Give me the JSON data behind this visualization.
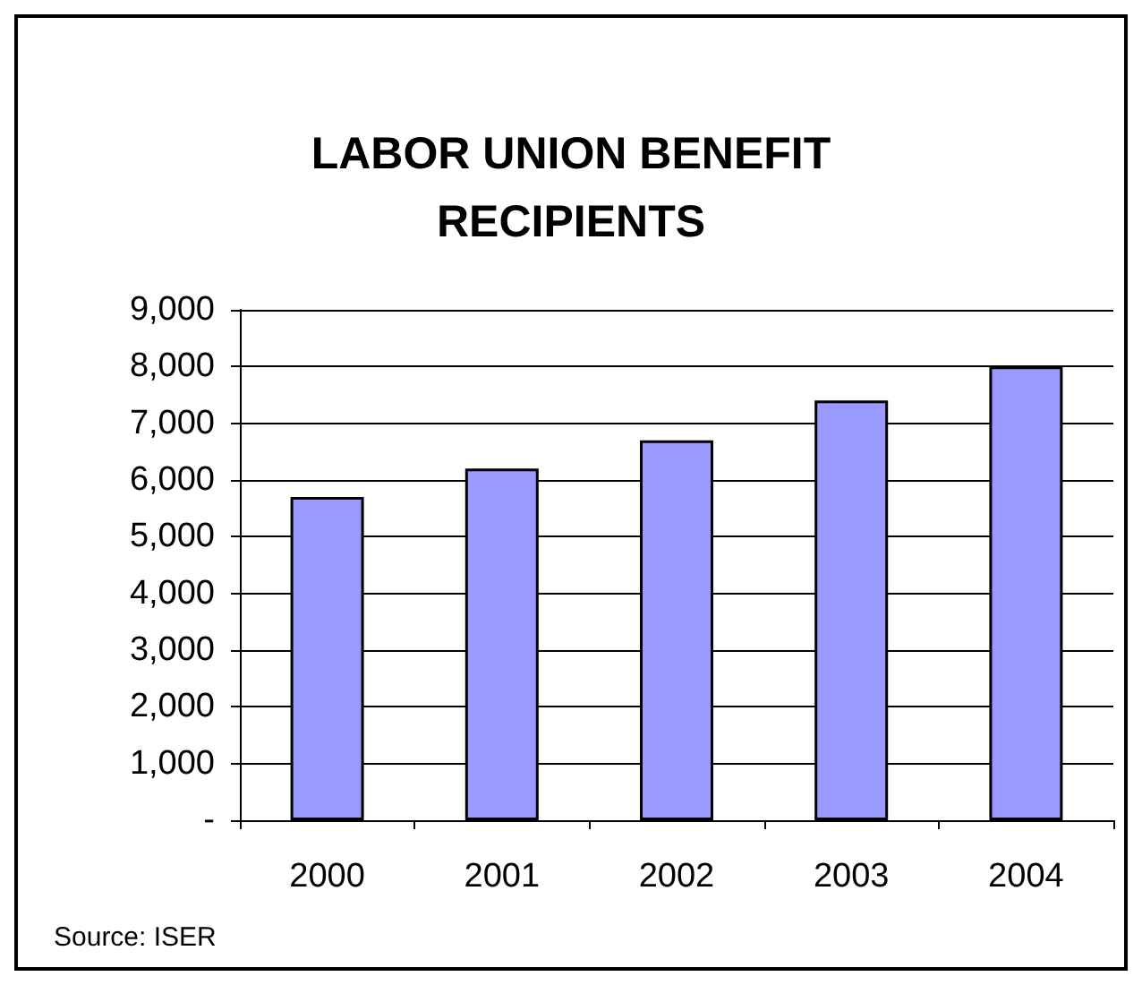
{
  "chart_data": {
    "type": "bar",
    "title": "LABOR UNION BENEFIT\nRECIPIENTS",
    "categories": [
      "2000",
      "2001",
      "2002",
      "2003",
      "2004"
    ],
    "values": [
      5700,
      6200,
      6700,
      7400,
      8000
    ],
    "color": "#9999ff",
    "ylim": [
      0,
      9000
    ],
    "yticks": [
      {
        "value": 0,
        "label": "-"
      },
      {
        "value": 1000,
        "label": "1,000"
      },
      {
        "value": 2000,
        "label": "2,000"
      },
      {
        "value": 3000,
        "label": "3,000"
      },
      {
        "value": 4000,
        "label": "4,000"
      },
      {
        "value": 5000,
        "label": "5,000"
      },
      {
        "value": 6000,
        "label": "6,000"
      },
      {
        "value": 7000,
        "label": "7,000"
      },
      {
        "value": 8000,
        "label": "8,000"
      },
      {
        "value": 9000,
        "label": "9,000"
      }
    ],
    "grid": "y",
    "annotations": [
      "Source: ISER"
    ]
  }
}
